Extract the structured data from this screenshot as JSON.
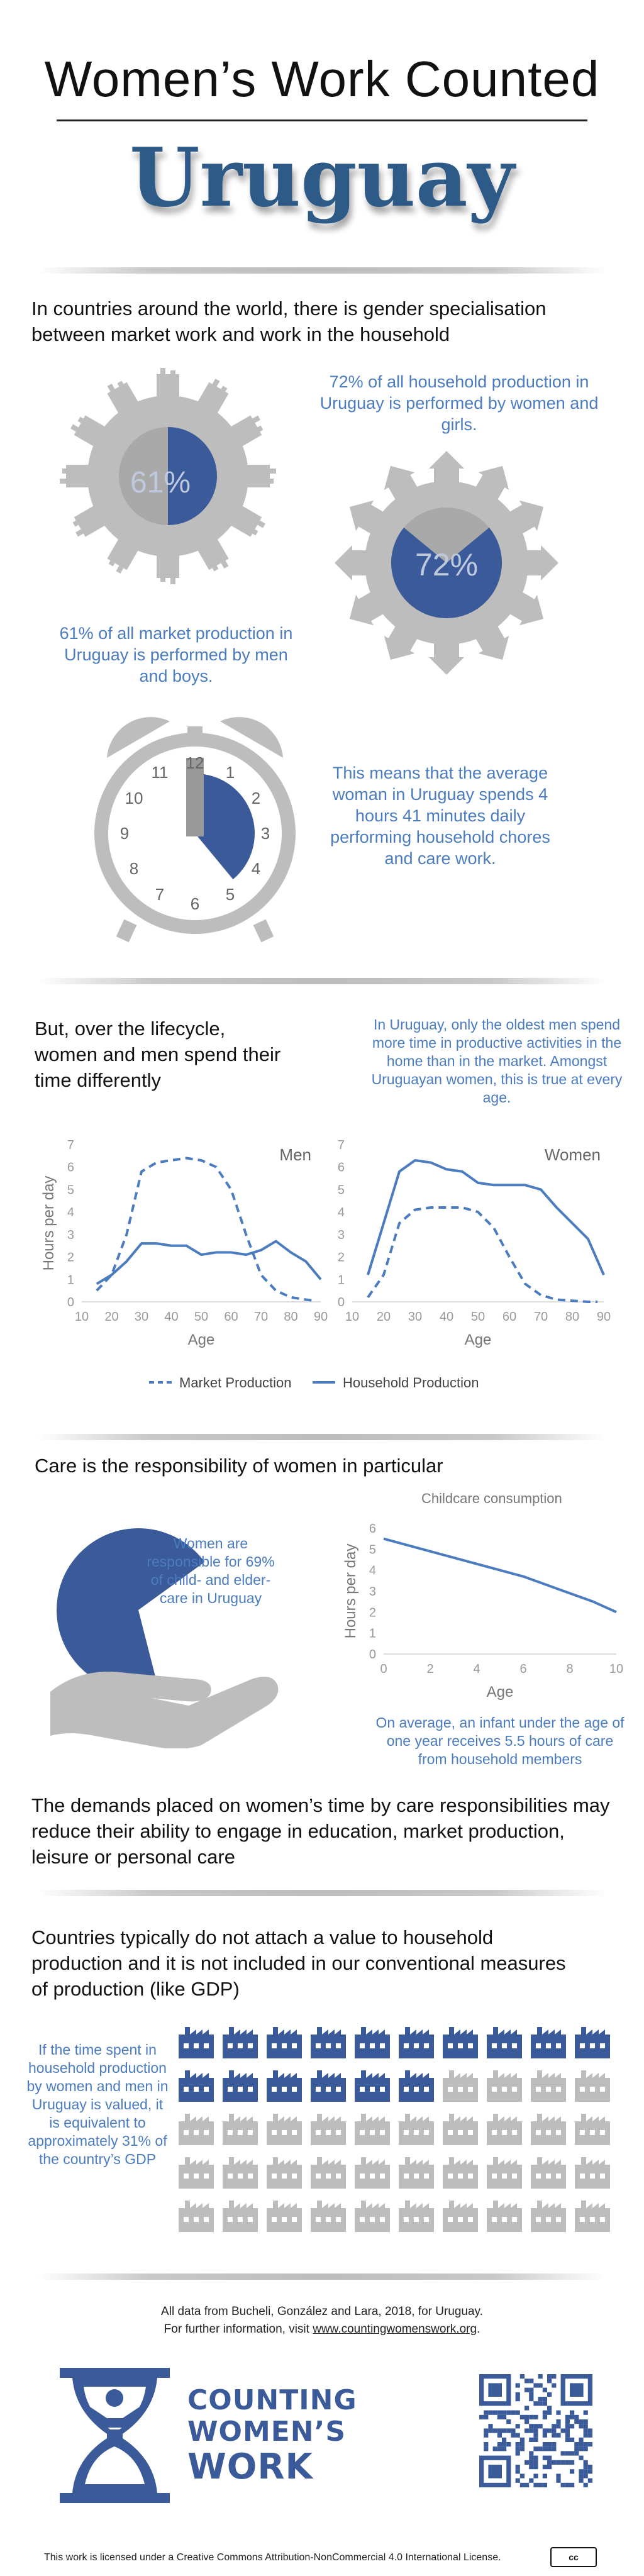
{
  "header": {
    "title": "Women’s Work Counted",
    "country": "Uruguay"
  },
  "intro": {
    "text": "In countries around the world, there is gender specialisation between market work and work in the household"
  },
  "market": {
    "pct_label": "61%",
    "pct": 61,
    "caption": "61% of all market production in Uruguay is performed by men and boys."
  },
  "household": {
    "pct_label": "72%",
    "pct": 72,
    "caption": "72% of all household production in Uruguay is performed by women and girls."
  },
  "clock": {
    "numbers": [
      "12",
      "1",
      "2",
      "3",
      "4",
      "5",
      "6",
      "7",
      "8",
      "9",
      "10",
      "11"
    ],
    "caption": "This means that the average woman in Uruguay spends 4 hours 41 minutes daily performing household chores and care work."
  },
  "lifecycle": {
    "heading": "But, over the lifecycle, women and men spend their time differently",
    "note": "In Uruguay, only the oldest men spend more time in productive activities in the home than in the market. Amongst Uruguayan women, this is true at every age.",
    "ylabel": "Hours per day",
    "xlabel": "Age",
    "legend_market": "Market Production",
    "legend_household": "Household Production"
  },
  "chart_data": [
    {
      "type": "line",
      "title": "Men",
      "xlabel": "Age",
      "ylabel": "Hours per day",
      "xticks": [
        "10",
        "20",
        "30",
        "40",
        "50",
        "60",
        "70",
        "80",
        "90"
      ],
      "yticks": [
        "0",
        "1",
        "2",
        "3",
        "4",
        "5",
        "6",
        "7"
      ],
      "xlim": [
        10,
        90
      ],
      "ylim": [
        0,
        7
      ],
      "series": [
        {
          "name": "Market Production",
          "style": "dashed",
          "x": [
            15,
            20,
            25,
            30,
            35,
            40,
            45,
            50,
            55,
            60,
            65,
            70,
            75,
            80,
            85,
            88
          ],
          "values": [
            0.5,
            1.2,
            3.0,
            5.8,
            6.2,
            6.3,
            6.4,
            6.3,
            6.0,
            5.0,
            3.0,
            1.2,
            0.5,
            0.2,
            0.1,
            0.05
          ]
        },
        {
          "name": "Household Production",
          "style": "solid",
          "x": [
            15,
            20,
            25,
            30,
            35,
            40,
            45,
            50,
            55,
            60,
            65,
            70,
            75,
            80,
            85,
            90
          ],
          "values": [
            0.8,
            1.2,
            1.8,
            2.6,
            2.6,
            2.5,
            2.5,
            2.1,
            2.2,
            2.2,
            2.1,
            2.3,
            2.7,
            2.2,
            1.8,
            1.0
          ]
        }
      ]
    },
    {
      "type": "line",
      "title": "Women",
      "xlabel": "Age",
      "ylabel": "Hours per day",
      "xticks": [
        "10",
        "20",
        "30",
        "40",
        "50",
        "60",
        "70",
        "80",
        "90"
      ],
      "yticks": [
        "0",
        "1",
        "2",
        "3",
        "4",
        "5",
        "6",
        "7"
      ],
      "xlim": [
        10,
        90
      ],
      "ylim": [
        0,
        7
      ],
      "series": [
        {
          "name": "Market Production",
          "style": "dashed",
          "x": [
            15,
            20,
            25,
            30,
            35,
            40,
            45,
            50,
            55,
            60,
            65,
            70,
            75,
            80,
            85,
            88
          ],
          "values": [
            0.2,
            1.2,
            3.5,
            4.1,
            4.2,
            4.2,
            4.2,
            4.0,
            3.3,
            2.0,
            0.8,
            0.3,
            0.1,
            0.05,
            0.0,
            0.0
          ]
        },
        {
          "name": "Household Production",
          "style": "solid",
          "x": [
            15,
            20,
            25,
            30,
            35,
            40,
            45,
            50,
            55,
            60,
            65,
            70,
            75,
            80,
            85,
            90
          ],
          "values": [
            1.2,
            3.5,
            5.8,
            6.3,
            6.2,
            5.9,
            5.8,
            5.3,
            5.2,
            5.2,
            5.2,
            5.0,
            4.2,
            3.5,
            2.8,
            1.2
          ]
        }
      ]
    },
    {
      "type": "line",
      "title": "Childcare consumption",
      "xlabel": "Age",
      "ylabel": "Hours per day",
      "xticks": [
        "0",
        "2",
        "4",
        "6",
        "8",
        "10"
      ],
      "yticks": [
        "0",
        "1",
        "2",
        "3",
        "4",
        "5",
        "6"
      ],
      "xlim": [
        0,
        10
      ],
      "ylim": [
        0,
        6
      ],
      "series": [
        {
          "x": [
            0,
            1,
            2,
            3,
            4,
            5,
            6,
            7,
            8,
            9,
            10
          ],
          "values": [
            5.5,
            5.2,
            4.9,
            4.6,
            4.3,
            4.0,
            3.7,
            3.3,
            2.9,
            2.5,
            2.0
          ]
        }
      ]
    }
  ],
  "care": {
    "heading": "Care is the responsibility of women in particular",
    "pct": 69,
    "pie_caption": "Women are responsible for 69% of child- and elder-care in Uruguay",
    "chart_caption": "On average, an infant under the age of one year receives 5.5 hours of care from household members"
  },
  "demands": {
    "text": "The demands placed on women’s time by care responsibilities may reduce their ability to engage in education, market production, leisure or personal care"
  },
  "gdp": {
    "heading": "Countries typically do not attach a value to household production and it is not included in our conventional measures of production (like GDP)",
    "caption": "If the time spent in household production by women and men in Uruguay is valued, it is equivalent to approximately 31% of the country’s GDP",
    "pct": 31
  },
  "footer": {
    "source": "All data from Bucheli, González and Lara, 2018, for Uruguay.",
    "more_prefix": "For further information, visit ",
    "link": "www.countingwomenswork.org",
    "more_suffix": ".",
    "logo_line1": "COUNTING",
    "logo_line2": "WOMEN’S",
    "logo_line3": "WORK",
    "license": "This work is licensed under a Creative Commons Attribution-NonCommercial 4.0 International License.",
    "cc_badge": "cc"
  },
  "colors": {
    "accent": "#3b5a99",
    "light_blue": "#4a7cbf",
    "grey": "#bdbdbd"
  }
}
